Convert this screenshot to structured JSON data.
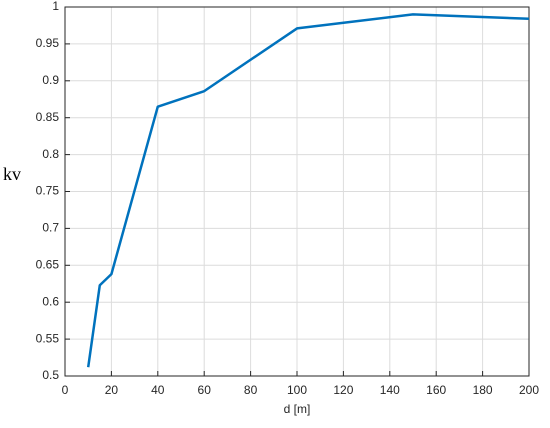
{
  "chart_data": {
    "type": "line",
    "xlabel": "d [m]",
    "ylabel": "kv",
    "x": [
      10,
      15,
      20,
      40,
      60,
      100,
      150,
      200
    ],
    "values": [
      0.512,
      0.623,
      0.638,
      0.865,
      0.886,
      0.971,
      0.99,
      0.984
    ],
    "color": "#0072bd",
    "xlim": [
      0,
      200
    ],
    "xticks": [
      0,
      20,
      40,
      60,
      80,
      100,
      120,
      140,
      160,
      180,
      200
    ],
    "ylim": [
      0.5,
      1
    ],
    "yticks": [
      0.5,
      0.55,
      0.6,
      0.65,
      0.7,
      0.75,
      0.8,
      0.85,
      0.9,
      0.95,
      1
    ],
    "grid": true
  }
}
